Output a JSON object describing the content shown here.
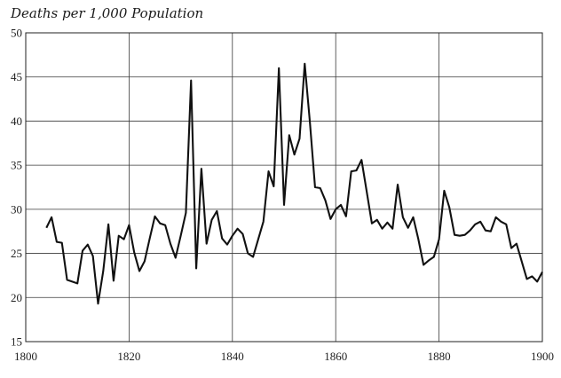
{
  "chart_data": {
    "type": "line",
    "title": "",
    "ylabel": "Deaths per 1,000 Population",
    "xlabel": "",
    "xlim": [
      1800,
      1900
    ],
    "ylim": [
      15,
      50
    ],
    "xticks": [
      1800,
      1820,
      1840,
      1860,
      1880,
      1900
    ],
    "yticks": [
      15,
      20,
      25,
      30,
      35,
      40,
      45,
      50
    ],
    "xtick_labels": [
      "1800",
      "1820",
      "1840",
      "1860",
      "1880",
      "1900"
    ],
    "ytick_labels": [
      "15",
      "20",
      "25",
      "30",
      "35",
      "40",
      "45",
      "50"
    ],
    "grid": true,
    "series": [
      {
        "x": [
          1804,
          1805,
          1806,
          1807,
          1808,
          1809,
          1810,
          1811,
          1812,
          1813,
          1814,
          1815,
          1816,
          1817,
          1818,
          1819,
          1820,
          1821,
          1822,
          1823,
          1824,
          1825,
          1826,
          1827,
          1828,
          1829,
          1830,
          1831,
          1832,
          1833,
          1834,
          1835,
          1836,
          1837,
          1838,
          1839,
          1840,
          1841,
          1842,
          1843,
          1844,
          1845,
          1846,
          1847,
          1848,
          1849,
          1850,
          1851,
          1852,
          1853,
          1854,
          1855,
          1856,
          1857,
          1858,
          1859,
          1860,
          1861,
          1862,
          1863,
          1864,
          1865,
          1866,
          1867,
          1868,
          1869,
          1870,
          1871,
          1872,
          1873,
          1874,
          1875,
          1876,
          1877,
          1878,
          1879,
          1880,
          1881,
          1882,
          1883,
          1884,
          1885,
          1886,
          1887,
          1888,
          1889,
          1890,
          1891,
          1892,
          1893,
          1894,
          1895,
          1896,
          1897,
          1898,
          1899,
          1900
        ],
        "y": [
          27.9,
          29.1,
          26.3,
          26.2,
          22.0,
          21.8,
          21.6,
          25.3,
          26.0,
          24.7,
          19.3,
          23.0,
          28.3,
          21.9,
          27.0,
          26.6,
          28.2,
          25.1,
          23.0,
          24.1,
          26.7,
          29.2,
          28.4,
          28.2,
          26.1,
          24.5,
          27.0,
          29.6,
          44.6,
          23.3,
          34.6,
          26.1,
          28.8,
          29.8,
          26.7,
          26.0,
          27.0,
          27.8,
          27.2,
          25.0,
          24.6,
          26.6,
          28.6,
          34.3,
          32.6,
          46.0,
          30.5,
          38.4,
          36.2,
          38.0,
          46.5,
          39.9,
          32.5,
          32.4,
          31.0,
          28.9,
          30.0,
          30.5,
          29.2,
          34.3,
          34.4,
          35.6,
          32.0,
          28.4,
          28.8,
          27.8,
          28.5,
          27.8,
          32.8,
          29.1,
          27.9,
          29.1,
          26.6,
          23.7,
          24.2,
          24.6,
          26.6,
          32.1,
          30.2,
          27.1,
          27.0,
          27.1,
          27.6,
          28.3,
          28.6,
          27.6,
          27.5,
          29.1,
          28.6,
          28.3,
          25.6,
          26.1,
          24.1,
          22.1,
          22.4,
          21.8,
          22.9
        ]
      }
    ]
  }
}
